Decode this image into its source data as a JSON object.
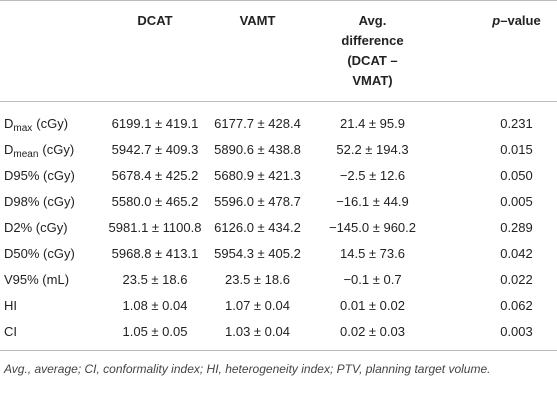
{
  "table": {
    "columns": [
      "DCAT",
      "VAMT",
      "Avg. difference (DCAT – VMAT)",
      {
        "italic": "p",
        "text": "–value"
      }
    ],
    "rows": [
      [
        {
          "base": "D",
          "sub": "max",
          "rest": "(cGy)"
        },
        "6199.1 ± 419.1",
        "6177.7 ± 428.4",
        "21.4 ± 95.9",
        "0.231"
      ],
      [
        {
          "base": "D",
          "sub": "mean",
          "rest": "(cGy)"
        },
        "5942.7 ± 409.3",
        "5890.6 ± 438.8",
        "52.2 ± 194.3",
        "0.015"
      ],
      [
        "D95% (cGy)",
        "5678.4 ± 425.2",
        "5680.9 ± 421.3",
        "−2.5 ± 12.6",
        "0.050"
      ],
      [
        "D98% (cGy)",
        "5580.0 ± 465.2",
        "5596.0 ± 478.7",
        "−16.1 ± 44.9",
        "0.005"
      ],
      [
        "D2% (cGy)",
        "5981.1 ± 1100.8",
        "6126.0 ± 434.2",
        "−145.0 ± 960.2",
        "0.289"
      ],
      [
        "D50% (cGy)",
        "5968.8 ± 413.1",
        "5954.3 ± 405.2",
        "14.5 ± 73.6",
        "0.042"
      ],
      [
        "V95% (mL)",
        "23.5 ± 18.6",
        "23.5 ± 18.6",
        "−0.1 ± 0.7",
        "0.022"
      ],
      [
        "HI",
        "1.08 ± 0.04",
        "1.07 ± 0.04",
        "0.01 ± 0.02",
        "0.062"
      ],
      [
        "CI",
        "1.05 ± 0.05",
        "1.03 ± 0.04",
        "0.02 ± 0.03",
        "0.003"
      ]
    ],
    "footnote": "Avg., average; CI, conformality index; HI, heterogeneity index; PTV, planning target volume."
  }
}
